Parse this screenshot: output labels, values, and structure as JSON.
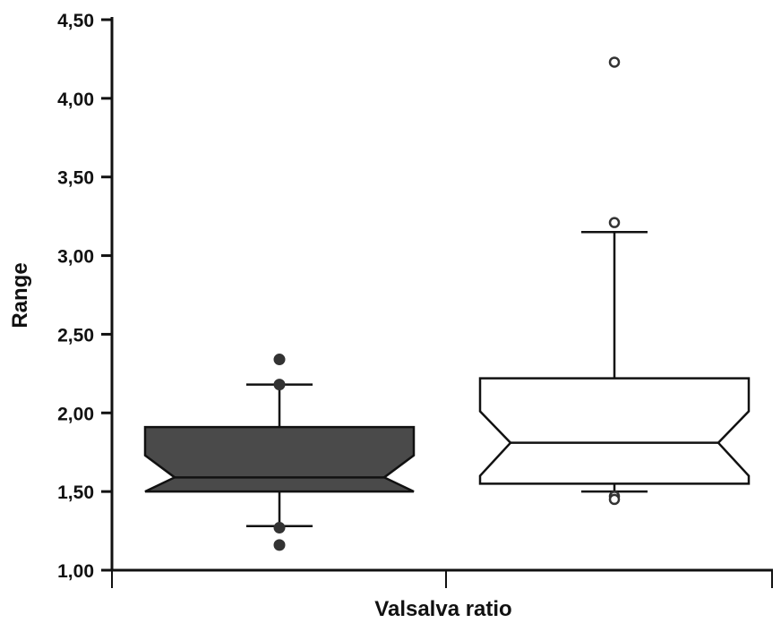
{
  "chart_data": {
    "type": "boxplot",
    "ylabel": "Range",
    "xlabel": "Valsalva ratio",
    "ylim": [
      1.0,
      4.5
    ],
    "y_ticks": [
      "1,00",
      "1,50",
      "2,00",
      "2,50",
      "3,00",
      "3,50",
      "4,00",
      "4,50"
    ],
    "y_tick_values": [
      1.0,
      1.5,
      2.0,
      2.5,
      3.0,
      3.5,
      4.0,
      4.5
    ],
    "grid": false,
    "series": [
      {
        "fill": "#4a4a4a",
        "q1": 1.5,
        "median": 1.59,
        "q3": 1.91,
        "notch_low": 1.5,
        "notch_high": 1.73,
        "whisker_low": 1.28,
        "whisker_high": 2.18,
        "outliers": [
          2.34,
          2.18,
          1.27,
          1.16
        ]
      },
      {
        "fill": "#ffffff",
        "q1": 1.55,
        "median": 1.81,
        "q3": 2.22,
        "notch_low": 1.6,
        "notch_high": 2.01,
        "whisker_low": 1.5,
        "whisker_high": 3.15,
        "outliers": [
          4.23,
          3.21,
          1.47,
          1.45
        ]
      }
    ]
  }
}
